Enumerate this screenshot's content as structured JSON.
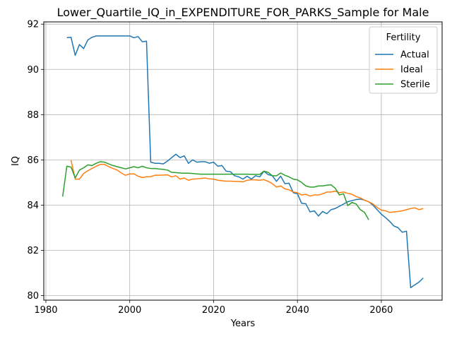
{
  "chart_data": {
    "type": "line",
    "title": "Lower_Quartile_IQ_in_EXPENDITURE_FOR_PARKS_Sample for Male",
    "xlabel": "Years",
    "ylabel": "IQ",
    "xlim": [
      1979.5,
      2074.5
    ],
    "ylim": [
      79.8,
      92.1
    ],
    "xticks": [
      1980,
      2000,
      2020,
      2040,
      2060
    ],
    "yticks": [
      80,
      82,
      84,
      86,
      88,
      90,
      92
    ],
    "grid": true,
    "legend": {
      "title": "Fertility",
      "position": "top-right"
    },
    "series": [
      {
        "name": "Actual",
        "color": "#1f77b4",
        "x": [
          1985,
          1986,
          1987,
          1988,
          1989,
          1990,
          1991,
          1992,
          1993,
          1994,
          1995,
          1996,
          1997,
          1998,
          1999,
          2000,
          2001,
          2002,
          2003,
          2004,
          2005,
          2006,
          2007,
          2008,
          2009,
          2010,
          2011,
          2012,
          2013,
          2014,
          2015,
          2016,
          2017,
          2018,
          2019,
          2020,
          2021,
          2022,
          2023,
          2024,
          2025,
          2026,
          2027,
          2028,
          2029,
          2030,
          2031,
          2032,
          2033,
          2034,
          2035,
          2036,
          2037,
          2038,
          2039,
          2040,
          2041,
          2042,
          2043,
          2044,
          2045,
          2046,
          2047,
          2048,
          2049,
          2050,
          2051,
          2052,
          2053,
          2054,
          2055,
          2056,
          2057,
          2058,
          2059,
          2060,
          2061,
          2062,
          2063,
          2064,
          2065,
          2066,
          2067,
          2068,
          2069,
          2070
        ],
        "y": [
          91.4,
          91.42,
          90.62,
          91.1,
          90.92,
          91.3,
          91.42,
          91.48,
          91.48,
          91.48,
          91.48,
          91.48,
          91.48,
          91.48,
          91.48,
          91.48,
          91.4,
          91.45,
          91.22,
          91.25,
          85.9,
          85.85,
          85.85,
          85.82,
          85.95,
          86.1,
          86.25,
          86.1,
          86.18,
          85.85,
          86.0,
          85.9,
          85.92,
          85.92,
          85.85,
          85.9,
          85.72,
          85.75,
          85.5,
          85.48,
          85.3,
          85.25,
          85.15,
          85.28,
          85.15,
          85.3,
          85.25,
          85.5,
          85.35,
          85.3,
          85.05,
          85.28,
          84.95,
          84.97,
          84.55,
          84.5,
          84.08,
          84.06,
          83.7,
          83.75,
          83.52,
          83.72,
          83.62,
          83.8,
          83.85,
          83.95,
          84.05,
          84.15,
          84.2,
          84.25,
          84.27,
          84.22,
          84.15,
          84.0,
          83.8,
          83.6,
          83.45,
          83.28,
          83.08,
          83.0,
          82.8,
          82.85,
          80.35,
          80.48,
          80.6,
          80.78
        ]
      },
      {
        "name": "Ideal",
        "color": "#ff7f0e",
        "x": [
          1986,
          1987,
          1988,
          1989,
          1990,
          1991,
          1992,
          1993,
          1994,
          1995,
          1996,
          1997,
          1998,
          1999,
          2000,
          2001,
          2002,
          2003,
          2004,
          2005,
          2006,
          2007,
          2008,
          2009,
          2010,
          2011,
          2012,
          2013,
          2014,
          2015,
          2016,
          2017,
          2018,
          2019,
          2020,
          2021,
          2022,
          2023,
          2024,
          2025,
          2026,
          2027,
          2028,
          2029,
          2030,
          2031,
          2032,
          2033,
          2034,
          2035,
          2036,
          2037,
          2038,
          2039,
          2040,
          2041,
          2042,
          2043,
          2044,
          2045,
          2046,
          2047,
          2048,
          2049,
          2050,
          2051,
          2052,
          2053,
          2054,
          2055,
          2056,
          2057,
          2058,
          2059,
          2060,
          2061,
          2062,
          2063,
          2064,
          2065,
          2066,
          2067,
          2068,
          2069,
          2070
        ],
        "y": [
          85.98,
          85.15,
          85.15,
          85.4,
          85.52,
          85.62,
          85.72,
          85.8,
          85.8,
          85.7,
          85.62,
          85.55,
          85.42,
          85.32,
          85.38,
          85.38,
          85.28,
          85.22,
          85.25,
          85.26,
          85.32,
          85.32,
          85.33,
          85.34,
          85.25,
          85.3,
          85.15,
          85.2,
          85.1,
          85.15,
          85.16,
          85.18,
          85.2,
          85.16,
          85.15,
          85.1,
          85.08,
          85.06,
          85.06,
          85.05,
          85.05,
          85.03,
          85.1,
          85.12,
          85.12,
          85.1,
          85.13,
          85.05,
          84.95,
          84.8,
          84.85,
          84.72,
          84.68,
          84.58,
          84.55,
          84.45,
          84.48,
          84.4,
          84.45,
          84.45,
          84.5,
          84.58,
          84.58,
          84.62,
          84.55,
          84.58,
          84.52,
          84.48,
          84.38,
          84.32,
          84.22,
          84.15,
          84.05,
          83.9,
          83.78,
          83.75,
          83.68,
          83.7,
          83.72,
          83.75,
          83.8,
          83.85,
          83.88,
          83.8,
          83.85
        ]
      },
      {
        "name": "Sterile",
        "color": "#2ca02c",
        "x": [
          1984,
          1985,
          1986,
          1987,
          1988,
          1989,
          1990,
          1991,
          1992,
          1993,
          1994,
          1995,
          1996,
          1997,
          1998,
          1999,
          2000,
          2001,
          2002,
          2003,
          2004,
          2005,
          2006,
          2007,
          2008,
          2009,
          2010,
          2011,
          2012,
          2013,
          2014,
          2015,
          2016,
          2017,
          2018,
          2019,
          2020,
          2021,
          2022,
          2023,
          2024,
          2025,
          2026,
          2027,
          2028,
          2029,
          2030,
          2031,
          2032,
          2033,
          2034,
          2035,
          2036,
          2037,
          2038,
          2039,
          2040,
          2041,
          2042,
          2043,
          2044,
          2045,
          2046,
          2047,
          2048,
          2049,
          2050,
          2051,
          2052,
          2053,
          2054,
          2055,
          2056,
          2057
        ],
        "y": [
          84.38,
          85.72,
          85.68,
          85.2,
          85.55,
          85.65,
          85.78,
          85.75,
          85.85,
          85.92,
          85.9,
          85.82,
          85.75,
          85.7,
          85.65,
          85.6,
          85.65,
          85.7,
          85.65,
          85.72,
          85.65,
          85.62,
          85.62,
          85.6,
          85.58,
          85.55,
          85.45,
          85.44,
          85.42,
          85.41,
          85.41,
          85.4,
          85.38,
          85.37,
          85.37,
          85.37,
          85.37,
          85.37,
          85.37,
          85.37,
          85.37,
          85.37,
          85.37,
          85.37,
          85.37,
          85.36,
          85.36,
          85.36,
          85.5,
          85.45,
          85.3,
          85.3,
          85.42,
          85.32,
          85.25,
          85.15,
          85.12,
          85.0,
          84.85,
          84.8,
          84.8,
          84.85,
          84.85,
          84.88,
          84.9,
          84.75,
          84.45,
          84.5,
          83.98,
          84.12,
          84.05,
          83.8,
          83.68,
          83.35
        ]
      }
    ]
  }
}
